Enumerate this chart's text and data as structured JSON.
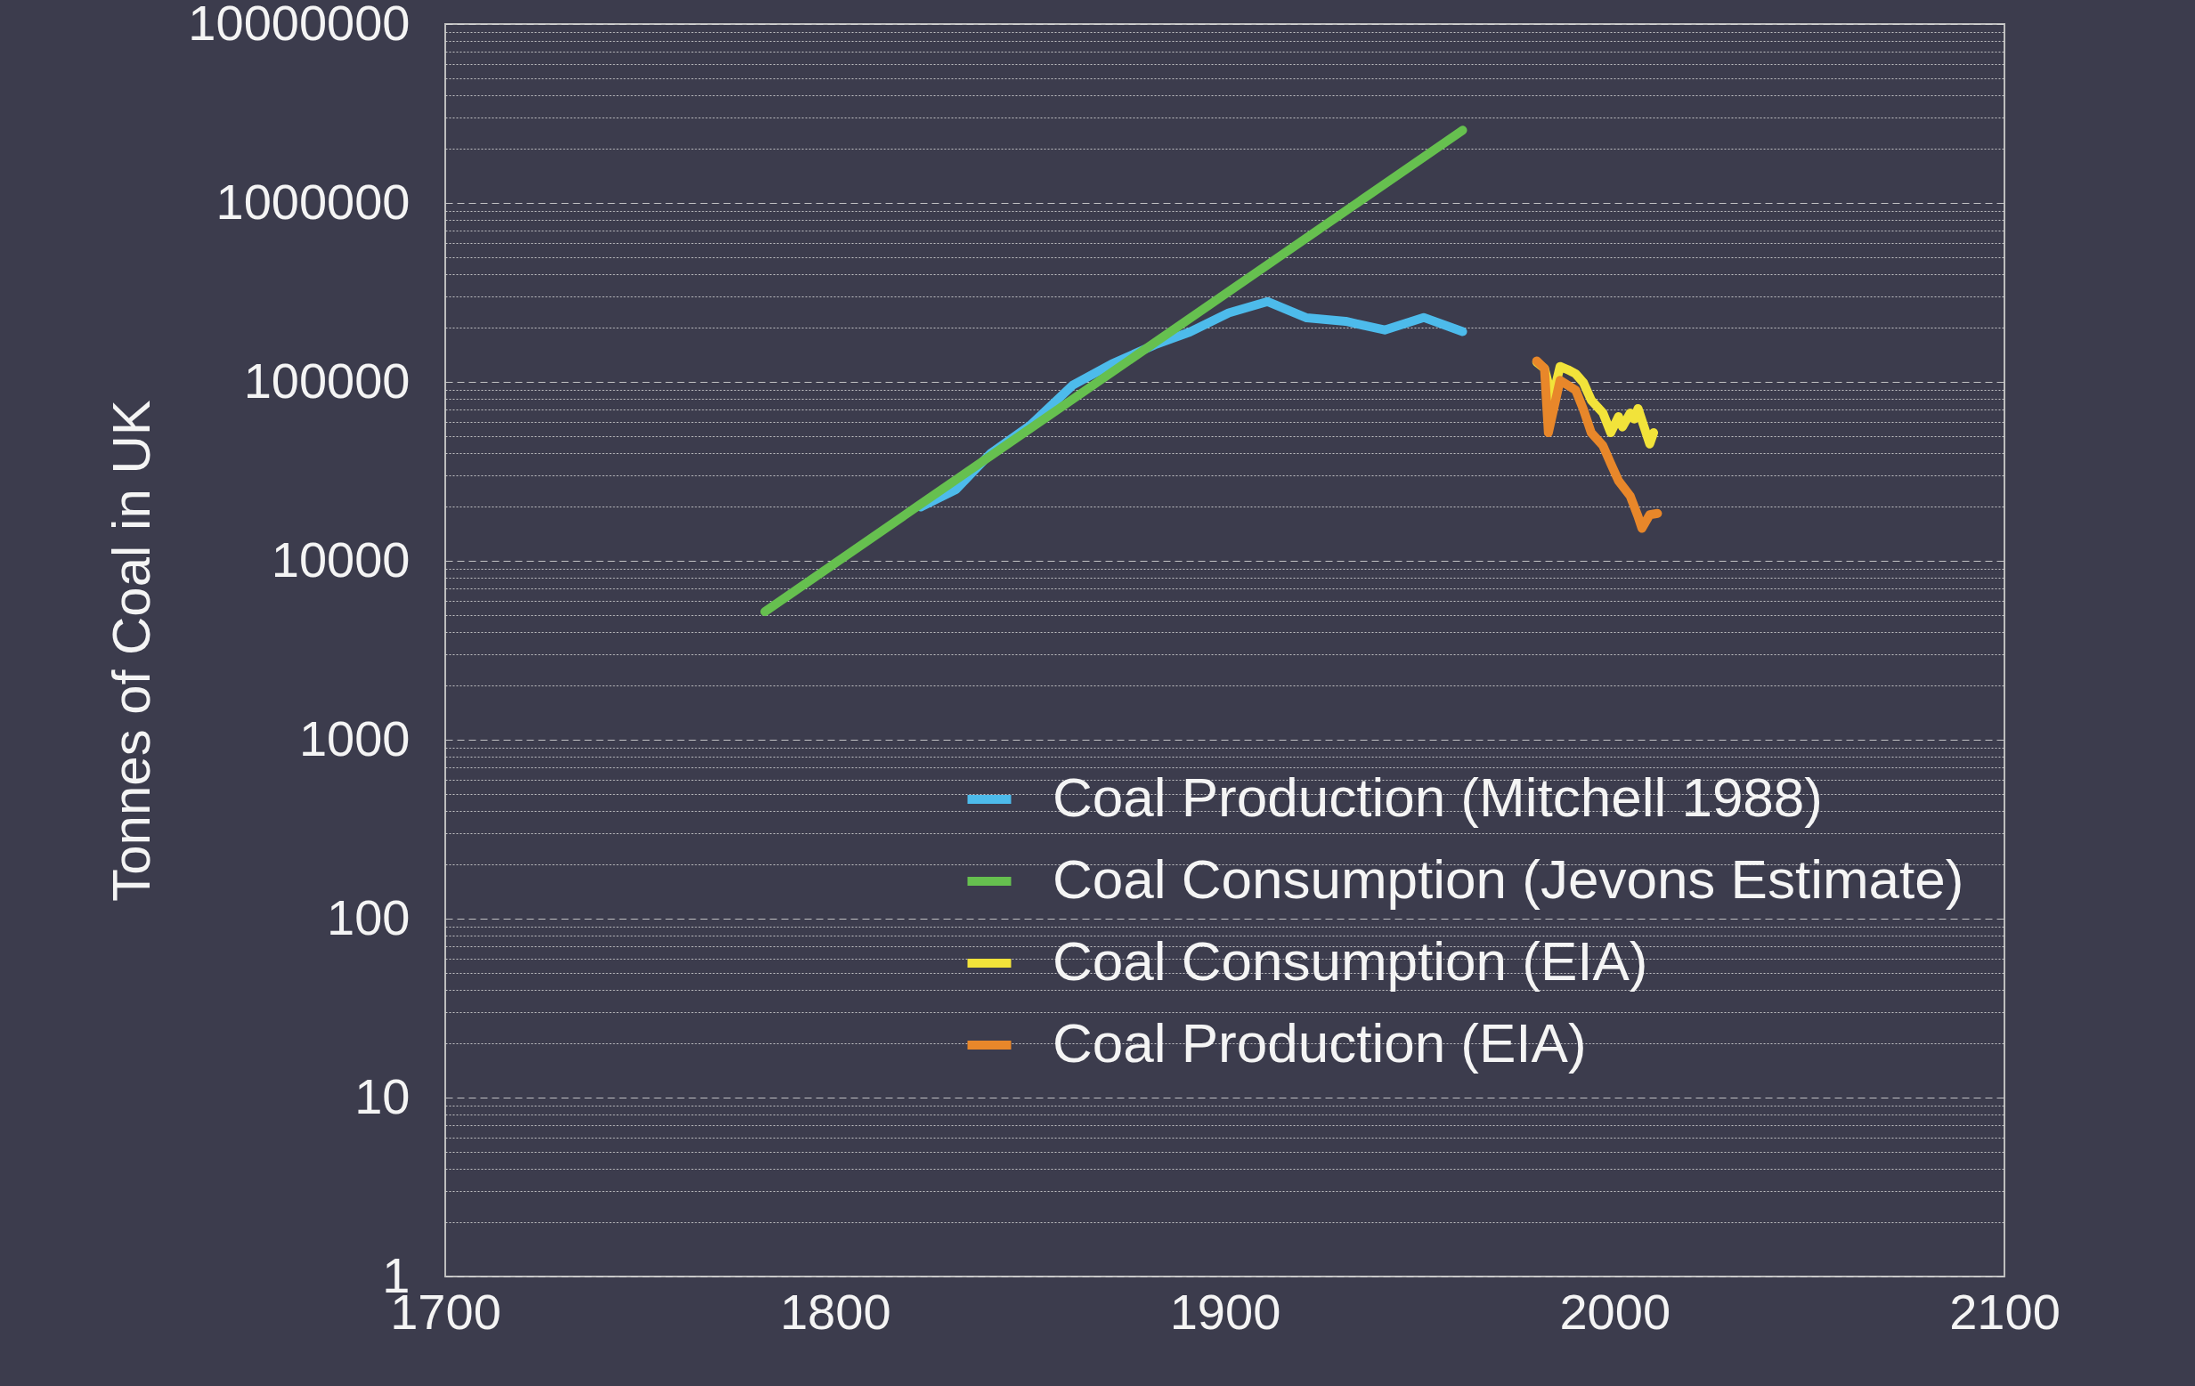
{
  "chart_data": {
    "type": "line",
    "ylabel": "Tonnes of Coal in UK",
    "log": true,
    "grid": "y",
    "legend": "bottom right",
    "line_style": "solid",
    "marker": "none",
    "xlim": [
      1700,
      2100
    ],
    "xticks": [
      1700,
      1800,
      1900,
      2000,
      2100
    ],
    "ylim": [
      1,
      10000000
    ],
    "yticks": [
      1,
      {
        "value": 2,
        "label": null
      },
      {
        "value": 3,
        "label": null
      },
      {
        "value": 4,
        "label": null
      },
      {
        "value": 5,
        "label": null
      },
      {
        "value": 6,
        "label": null
      },
      {
        "value": 7,
        "label": null
      },
      {
        "value": 8,
        "label": null
      },
      {
        "value": 9,
        "label": null
      },
      10,
      {
        "value": 20,
        "label": null
      },
      {
        "value": 30,
        "label": null
      },
      {
        "value": 40,
        "label": null
      },
      {
        "value": 50,
        "label": null
      },
      {
        "value": 60,
        "label": null
      },
      {
        "value": 70,
        "label": null
      },
      {
        "value": 80,
        "label": null
      },
      {
        "value": 90,
        "label": null
      },
      100,
      {
        "value": 200,
        "label": null
      },
      {
        "value": 300,
        "label": null
      },
      {
        "value": 400,
        "label": null
      },
      {
        "value": 500,
        "label": null
      },
      {
        "value": 600,
        "label": null
      },
      {
        "value": 700,
        "label": null
      },
      {
        "value": 800,
        "label": null
      },
      {
        "value": 900,
        "label": null
      },
      1000,
      {
        "value": 2000,
        "label": null
      },
      {
        "value": 3000,
        "label": null
      },
      {
        "value": 4000,
        "label": null
      },
      {
        "value": 5000,
        "label": null
      },
      {
        "value": 6000,
        "label": null
      },
      {
        "value": 7000,
        "label": null
      },
      {
        "value": 8000,
        "label": null
      },
      {
        "value": 9000,
        "label": null
      },
      10000,
      {
        "value": 20000,
        "label": null
      },
      {
        "value": 30000,
        "label": null
      },
      {
        "value": 40000,
        "label": null
      },
      {
        "value": 50000,
        "label": null
      },
      {
        "value": 60000,
        "label": null
      },
      {
        "value": 70000,
        "label": null
      },
      {
        "value": 80000,
        "label": null
      },
      {
        "value": 90000,
        "label": null
      },
      100000,
      {
        "value": 200000,
        "label": null
      },
      {
        "value": 300000,
        "label": null
      },
      {
        "value": 400000,
        "label": null
      },
      {
        "value": 500000,
        "label": null
      },
      {
        "value": 600000,
        "label": null
      },
      {
        "value": 700000,
        "label": null
      },
      {
        "value": 800000,
        "label": null
      },
      {
        "value": 900000,
        "label": null
      },
      1000000,
      {
        "value": 2000000,
        "label": null
      },
      {
        "value": 3000000,
        "label": null
      },
      {
        "value": 4000000,
        "label": null
      },
      {
        "value": 5000000,
        "label": null
      },
      {
        "value": 6000000,
        "label": null
      },
      {
        "value": 7000000,
        "label": null
      },
      {
        "value": 8000000,
        "label": null
      },
      {
        "value": 9000000,
        "label": null
      },
      10000000
    ],
    "series": [
      {
        "name": "Coal Production (Mitchell 1988)",
        "color": "#4dbbeb",
        "x": [
          1822,
          1831,
          1840,
          1850,
          1861,
          1871,
          1882,
          1891,
          1901,
          1911,
          1921,
          1931,
          1941,
          1951,
          1961
        ],
        "values": [
          20000,
          25000,
          40000,
          57000,
          96000,
          126000,
          161000,
          190000,
          243000,
          281000,
          228000,
          218000,
          195000,
          229000,
          191000
        ]
      },
      {
        "name": "Coal Consumption (Jevons Estimate)",
        "color": "#66c04f",
        "x": [
          1782,
          1961
        ],
        "values": [
          5200,
          2550000
        ]
      },
      {
        "name": "Coal Consumption (EIA)",
        "color": "#f2e33a",
        "x": [
          1980,
          1982,
          1984,
          1986,
          1988,
          1990,
          1992,
          1994,
          1997,
          1999,
          2001,
          2002,
          2004,
          2005,
          2006,
          2009,
          2010
        ],
        "values": [
          129000,
          119000,
          80000,
          122000,
          117000,
          111000,
          99000,
          79000,
          67000,
          52000,
          64000,
          56000,
          67000,
          62000,
          71000,
          45000,
          52000
        ]
      },
      {
        "name": "Coal Production (EIA)",
        "color": "#e8872a",
        "x": [
          1980,
          1982,
          1983,
          1986,
          1990,
          1992,
          1994,
          1997,
          1999,
          2001,
          2004,
          2006,
          2007,
          2009,
          2011
        ],
        "values": [
          131000,
          119000,
          52000,
          102000,
          90000,
          70000,
          52000,
          44000,
          35000,
          28000,
          23000,
          17700,
          15200,
          18100,
          18400
        ]
      }
    ]
  }
}
